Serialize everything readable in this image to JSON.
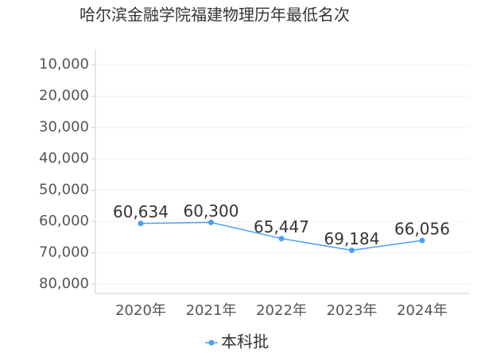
{
  "chart_data": {
    "type": "line",
    "title": "哈尔滨金融学院福建物理历年最低名次",
    "categories": [
      "2020年",
      "2021年",
      "2022年",
      "2023年",
      "2024年"
    ],
    "series": [
      {
        "name": "本科批",
        "color": "#4a9ff5",
        "values": [
          60634,
          60300,
          65447,
          69184,
          66056
        ],
        "value_labels": [
          "60,634",
          "60,300",
          "65,447",
          "69,184",
          "66,056"
        ]
      }
    ],
    "ylim": [
      5000,
      83000
    ],
    "y_inverted": true,
    "yticks": [
      {
        "value": 10000,
        "label": "10,000"
      },
      {
        "value": 20000,
        "label": "20,000"
      },
      {
        "value": 30000,
        "label": "30,000"
      },
      {
        "value": 40000,
        "label": "40,000"
      },
      {
        "value": 50000,
        "label": "50,000"
      },
      {
        "value": 60000,
        "label": "60,000"
      },
      {
        "value": 70000,
        "label": "70,000"
      },
      {
        "value": 80000,
        "label": "80,000"
      }
    ],
    "grid": true,
    "legend": "bottom"
  }
}
